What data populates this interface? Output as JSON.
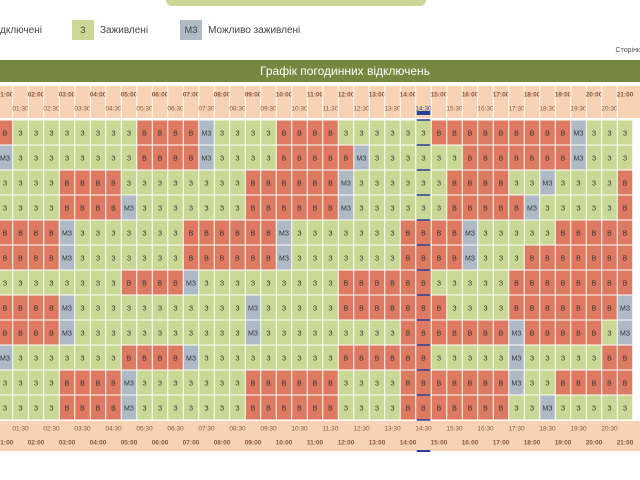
{
  "legend": [
    {
      "label": "дключені"
    },
    {
      "code": "З",
      "label": "Заживлені"
    },
    {
      "code": "МЗ",
      "label": "Можливо заживлені"
    }
  ],
  "pager_label": "Сторінк",
  "table": {
    "title": "Графік погодинних відключень",
    "colors": {
      "В": "#de7a62",
      "З": "#c9d895",
      "МЗ": "#aebbc6"
    },
    "current_time": "14:30",
    "times": [
      "01:00",
      "01:30",
      "02:00",
      "02:30",
      "03:00",
      "03:30",
      "04:00",
      "04:30",
      "05:00",
      "05:30",
      "06:00",
      "06:30",
      "07:00",
      "07:30",
      "08:00",
      "08:30",
      "09:00",
      "09:30",
      "10:00",
      "10:30",
      "11:00",
      "11:30",
      "12:00",
      "12:30",
      "13:00",
      "13:30",
      "14:00",
      "14:30",
      "15:00",
      "15:30",
      "16:00",
      "16:30",
      "17:00",
      "17:30",
      "18:00",
      "18:30",
      "19:00",
      "19:30",
      "20:00",
      "20:30",
      "21:00"
    ],
    "rows": [
      [
        "В",
        "З",
        "З",
        "З",
        "З",
        "З",
        "З",
        "З",
        "З",
        "В",
        "В",
        "В",
        "В",
        "МЗ",
        "З",
        "З",
        "З",
        "З",
        "В",
        "В",
        "В",
        "В",
        "З",
        "З",
        "З",
        "З",
        "З",
        "З",
        "В",
        "В",
        "В",
        "В",
        "В",
        "В",
        "В",
        "В",
        "В",
        "МЗ",
        "З",
        "З",
        "З"
      ],
      [
        "МЗ",
        "З",
        "З",
        "З",
        "З",
        "З",
        "З",
        "З",
        "З",
        "В",
        "В",
        "В",
        "В",
        "МЗ",
        "З",
        "З",
        "З",
        "З",
        "В",
        "В",
        "В",
        "В",
        "В",
        "МЗ",
        "З",
        "З",
        "З",
        "З",
        "З",
        "З",
        "В",
        "В",
        "В",
        "В",
        "В",
        "В",
        "В",
        "МЗ",
        "З",
        "З",
        "З"
      ],
      [
        "З",
        "З",
        "З",
        "З",
        "В",
        "В",
        "В",
        "В",
        "З",
        "З",
        "З",
        "З",
        "З",
        "З",
        "З",
        "З",
        "В",
        "В",
        "В",
        "В",
        "В",
        "В",
        "МЗ",
        "З",
        "З",
        "З",
        "З",
        "З",
        "З",
        "В",
        "В",
        "В",
        "В",
        "З",
        "З",
        "МЗ",
        "З",
        "З",
        "З",
        "З",
        "В"
      ],
      [
        "З",
        "З",
        "З",
        "З",
        "В",
        "В",
        "В",
        "В",
        "МЗ",
        "З",
        "З",
        "З",
        "З",
        "З",
        "З",
        "З",
        "В",
        "В",
        "В",
        "В",
        "В",
        "В",
        "МЗ",
        "З",
        "З",
        "З",
        "З",
        "З",
        "З",
        "В",
        "В",
        "В",
        "В",
        "В",
        "МЗ",
        "З",
        "З",
        "З",
        "З",
        "З",
        "В"
      ],
      [
        "В",
        "В",
        "В",
        "В",
        "МЗ",
        "З",
        "З",
        "З",
        "З",
        "З",
        "З",
        "З",
        "В",
        "В",
        "В",
        "В",
        "В",
        "В",
        "МЗ",
        "З",
        "З",
        "З",
        "З",
        "З",
        "З",
        "З",
        "В",
        "В",
        "В",
        "В",
        "МЗ",
        "З",
        "З",
        "З",
        "З",
        "З",
        "В",
        "В",
        "В",
        "В",
        "В"
      ],
      [
        "В",
        "В",
        "В",
        "В",
        "МЗ",
        "З",
        "З",
        "З",
        "З",
        "З",
        "З",
        "З",
        "В",
        "В",
        "В",
        "В",
        "В",
        "В",
        "МЗ",
        "З",
        "З",
        "З",
        "З",
        "З",
        "З",
        "З",
        "В",
        "В",
        "В",
        "В",
        "МЗ",
        "З",
        "З",
        "З",
        "В",
        "В",
        "В",
        "В",
        "В",
        "В",
        "В"
      ],
      [
        "З",
        "З",
        "З",
        "З",
        "З",
        "З",
        "З",
        "З",
        "В",
        "В",
        "В",
        "В",
        "МЗ",
        "З",
        "З",
        "З",
        "З",
        "З",
        "З",
        "З",
        "З",
        "З",
        "В",
        "В",
        "В",
        "В",
        "В",
        "В",
        "З",
        "З",
        "З",
        "З",
        "З",
        "В",
        "В",
        "В",
        "В",
        "В",
        "В",
        "В",
        "В"
      ],
      [
        "В",
        "В",
        "В",
        "В",
        "МЗ",
        "З",
        "З",
        "З",
        "З",
        "З",
        "З",
        "З",
        "З",
        "З",
        "З",
        "З",
        "МЗ",
        "З",
        "З",
        "З",
        "З",
        "З",
        "В",
        "В",
        "В",
        "В",
        "В",
        "В",
        "В",
        "З",
        "З",
        "З",
        "З",
        "В",
        "В",
        "В",
        "В",
        "В",
        "В",
        "В",
        "МЗ"
      ],
      [
        "В",
        "В",
        "В",
        "В",
        "МЗ",
        "З",
        "З",
        "З",
        "З",
        "З",
        "З",
        "З",
        "З",
        "З",
        "З",
        "З",
        "МЗ",
        "З",
        "З",
        "З",
        "З",
        "З",
        "З",
        "З",
        "З",
        "З",
        "В",
        "В",
        "В",
        "В",
        "В",
        "В",
        "В",
        "МЗ",
        "В",
        "В",
        "В",
        "В",
        "В",
        "З",
        "МЗ"
      ],
      [
        "МЗ",
        "З",
        "З",
        "З",
        "З",
        "З",
        "З",
        "З",
        "В",
        "В",
        "В",
        "В",
        "МЗ",
        "З",
        "З",
        "З",
        "З",
        "З",
        "З",
        "З",
        "З",
        "З",
        "В",
        "В",
        "В",
        "В",
        "В",
        "В",
        "З",
        "З",
        "З",
        "З",
        "З",
        "МЗ",
        "З",
        "З",
        "З",
        "З",
        "З",
        "В",
        "В"
      ],
      [
        "З",
        "З",
        "З",
        "З",
        "В",
        "В",
        "В",
        "В",
        "МЗ",
        "З",
        "З",
        "З",
        "З",
        "З",
        "З",
        "З",
        "В",
        "В",
        "В",
        "В",
        "В",
        "В",
        "З",
        "З",
        "З",
        "З",
        "В",
        "В",
        "В",
        "В",
        "В",
        "В",
        "В",
        "МЗ",
        "З",
        "З",
        "В",
        "В",
        "В",
        "В",
        "В"
      ],
      [
        "З",
        "З",
        "З",
        "З",
        "В",
        "В",
        "В",
        "В",
        "МЗ",
        "З",
        "З",
        "З",
        "З",
        "З",
        "З",
        "З",
        "В",
        "В",
        "В",
        "В",
        "В",
        "В",
        "З",
        "З",
        "З",
        "З",
        "В",
        "В",
        "В",
        "В",
        "В",
        "В",
        "В",
        "З",
        "З",
        "МЗ",
        "З",
        "З",
        "З",
        "З",
        "З"
      ]
    ]
  }
}
